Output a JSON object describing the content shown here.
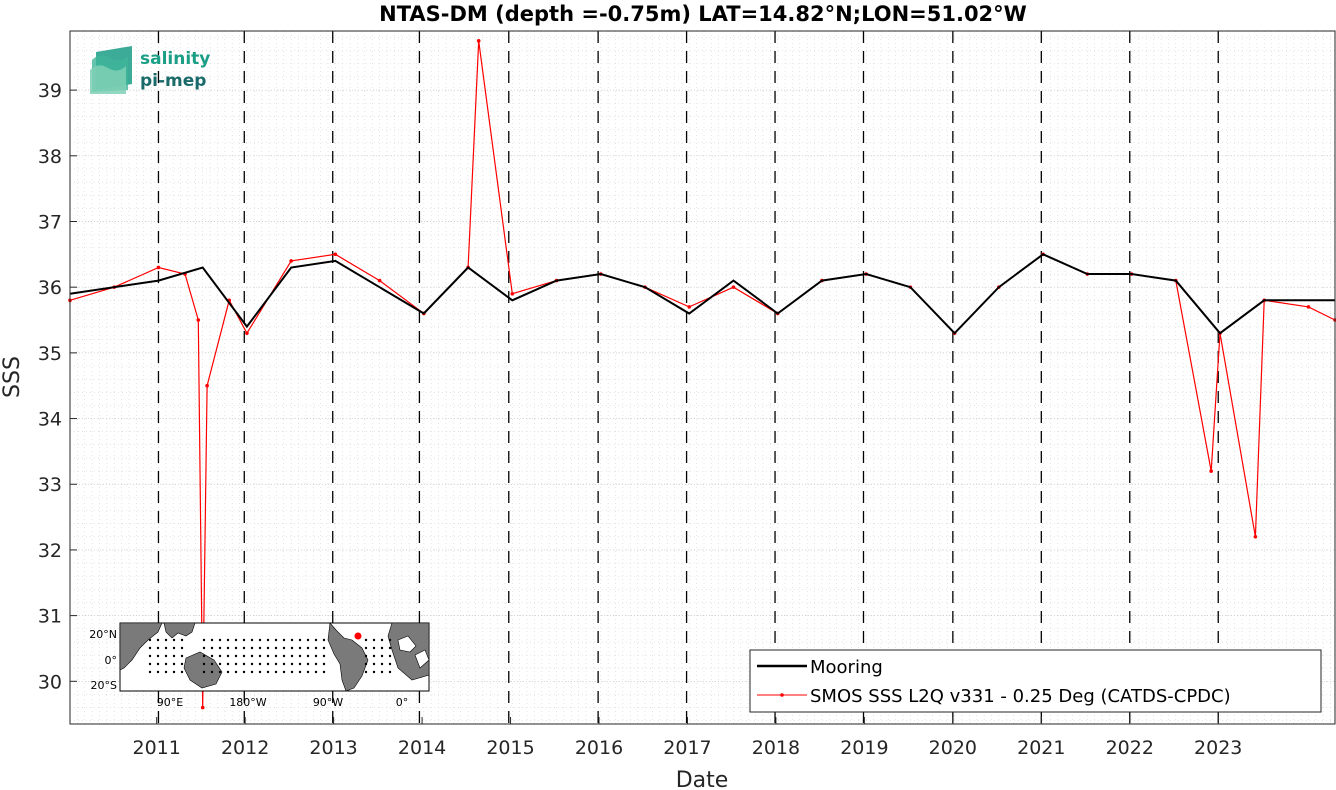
{
  "chart_data": {
    "type": "line",
    "title": "NTAS-DM (depth =-0.75m) LAT=14.82°N;LON=51.02°W",
    "xlabel": "Date",
    "ylabel": "SSS",
    "xlim": [
      2010.0,
      2024.3
    ],
    "ylim": [
      29.35,
      39.9
    ],
    "x_ticks": [
      "2011",
      "2012",
      "2013",
      "2014",
      "2015",
      "2016",
      "2017",
      "2018",
      "2019",
      "2020",
      "2021",
      "2022",
      "2023"
    ],
    "y_ticks": [
      "30",
      "31",
      "32",
      "33",
      "34",
      "35",
      "36",
      "37",
      "38",
      "39"
    ],
    "vertical_markers": [
      2011.0,
      2011.97,
      2012.97,
      2013.95,
      2014.96,
      2015.97,
      2016.97,
      2017.97,
      2018.97,
      2019.98,
      2020.98,
      2021.98,
      2022.98
    ],
    "grid": true,
    "legend_position": "bottom-right",
    "series": [
      {
        "name": "Mooring",
        "color": "#000000",
        "x": [
          2010.0,
          2011.0,
          2011.5,
          2012.0,
          2012.5,
          2013.0,
          2013.5,
          2014.0,
          2014.5,
          2015.0,
          2015.5,
          2016.0,
          2016.5,
          2017.0,
          2017.5,
          2018.0,
          2018.5,
          2019.0,
          2019.5,
          2020.0,
          2020.5,
          2021.0,
          2021.5,
          2022.0,
          2022.5,
          2023.0,
          2023.5,
          2024.3
        ],
        "values": [
          35.9,
          36.1,
          36.3,
          35.4,
          36.3,
          36.4,
          36.0,
          35.6,
          36.3,
          35.8,
          36.1,
          36.2,
          36.0,
          35.6,
          36.1,
          35.6,
          36.1,
          36.2,
          36.0,
          35.3,
          36.0,
          36.5,
          36.2,
          36.2,
          36.1,
          35.3,
          35.8,
          35.8
        ]
      },
      {
        "name": "SMOS SSS L2Q v331 - 0.25 Deg (CATDS-CPDC)",
        "color": "#ff0000",
        "x": [
          2010.0,
          2010.5,
          2011.0,
          2011.3,
          2011.45,
          2011.5,
          2011.55,
          2011.8,
          2012.0,
          2012.5,
          2013.0,
          2013.5,
          2014.0,
          2014.5,
          2014.62,
          2015.0,
          2015.5,
          2016.0,
          2016.5,
          2017.0,
          2017.5,
          2018.0,
          2018.5,
          2019.0,
          2019.5,
          2020.0,
          2020.5,
          2021.0,
          2021.5,
          2022.0,
          2022.5,
          2022.9,
          2023.0,
          2023.4,
          2023.5,
          2024.0,
          2024.3
        ],
        "values": [
          35.8,
          36.0,
          36.3,
          36.2,
          35.5,
          29.6,
          34.5,
          35.8,
          35.3,
          36.4,
          36.5,
          36.1,
          35.6,
          36.3,
          39.75,
          35.9,
          36.1,
          36.2,
          36.0,
          35.7,
          36.0,
          35.6,
          36.1,
          36.2,
          36.0,
          35.3,
          36.0,
          36.5,
          36.2,
          36.2,
          36.1,
          33.2,
          35.3,
          32.2,
          35.8,
          35.7,
          35.5
        ]
      }
    ]
  },
  "logo": {
    "line1": "salinity",
    "line2": "pi-mep"
  },
  "inset_map": {
    "lat_labels": [
      "20°N",
      "0°",
      "20°S"
    ],
    "lon_labels": [
      "90°E",
      "180°W",
      "90°W",
      "0°"
    ]
  }
}
